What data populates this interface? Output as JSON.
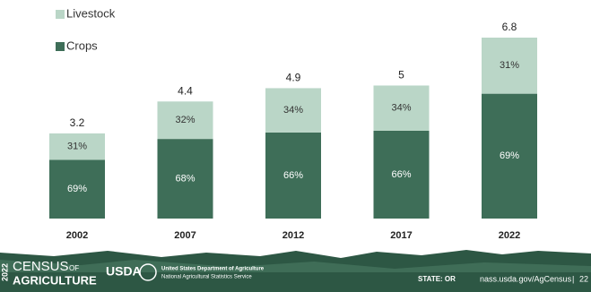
{
  "chart_data": {
    "type": "stacked-share-bar",
    "categories": [
      "2002",
      "2007",
      "2012",
      "2017",
      "2022"
    ],
    "values": [
      3.2,
      4.4,
      4.9,
      5.0,
      6.8
    ],
    "series": [
      {
        "name": "Crops",
        "color": "#3e6e58",
        "values": [
          69,
          68,
          66,
          66,
          69
        ],
        "value_labels": [
          "69%",
          "68%",
          "66%",
          "66%",
          "69%"
        ]
      },
      {
        "name": "Livestock",
        "color": "#bad6c7",
        "values": [
          31,
          32,
          34,
          34,
          31
        ],
        "value_labels": [
          "31%",
          "32%",
          "34%",
          "34%",
          "31%"
        ]
      }
    ]
  },
  "footer": {
    "census_year": "2022",
    "census_line1": "CENSUS",
    "census_of": "OF",
    "census_line2": "AGRICULTURE",
    "usda": "USDA",
    "department": "United States Department of Agriculture",
    "service": "National Agricultural Statistics Service",
    "state": "STATE: OR",
    "url": "nass.usda.gov/AgCensus",
    "separator": "|",
    "page": "22"
  }
}
